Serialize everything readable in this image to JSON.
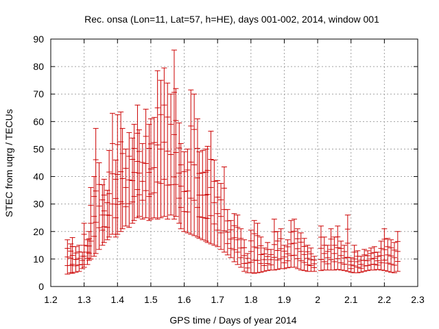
{
  "chart_data": {
    "type": "scatter",
    "style": "error-bars",
    "title": "Rec. onsa (Lon=11, Lat=57, h=HE), days 001-002, 2014, window 001",
    "xlabel": "GPS time / Days of year 2014",
    "ylabel": "STEC from uqrg / TECUs",
    "xlim": [
      1.2,
      2.3
    ],
    "ylim": [
      0,
      90
    ],
    "x_ticks": [
      "1.2",
      "1.3",
      "1.4",
      "1.5",
      "1.6",
      "1.7",
      "1.8",
      "1.9",
      "2",
      "2.1",
      "2.2",
      "2.3"
    ],
    "y_ticks": [
      "0",
      "10",
      "20",
      "30",
      "40",
      "50",
      "60",
      "70",
      "80",
      "90"
    ],
    "grid": true,
    "colors": {
      "series": "#cc0000",
      "grid": "#a0a0a0",
      "frame": "#000000"
    },
    "series": [
      {
        "points": [
          [
            1.25,
            4.5,
            17.0
          ],
          [
            1.26,
            5.0,
            15.5
          ],
          [
            1.265,
            4.8,
            17.8
          ],
          [
            1.275,
            5.2,
            14.5
          ],
          [
            1.285,
            5.5,
            15.0
          ],
          [
            1.295,
            6.5,
            12.5
          ],
          [
            1.3,
            7.0,
            23.0
          ],
          [
            1.31,
            8.0,
            17.0
          ],
          [
            1.315,
            9.5,
            20.0
          ],
          [
            1.32,
            10.0,
            36.0
          ],
          [
            1.33,
            11.0,
            40.0
          ],
          [
            1.335,
            12.0,
            57.5
          ],
          [
            1.345,
            13.5,
            45.0
          ],
          [
            1.355,
            15.0,
            37.0
          ],
          [
            1.36,
            16.0,
            39.0
          ],
          [
            1.37,
            17.0,
            35.0
          ],
          [
            1.375,
            18.0,
            49.5
          ],
          [
            1.385,
            19.0,
            63.0
          ],
          [
            1.395,
            18.0,
            46.0
          ],
          [
            1.4,
            19.0,
            62.5
          ],
          [
            1.41,
            20.0,
            63.5
          ],
          [
            1.415,
            21.0,
            57.5
          ],
          [
            1.425,
            22.0,
            50.0
          ],
          [
            1.435,
            21.5,
            56.0
          ],
          [
            1.445,
            23.0,
            54.0
          ],
          [
            1.45,
            24.0,
            59.0
          ],
          [
            1.46,
            25.0,
            66.0
          ],
          [
            1.465,
            25.5,
            57.0
          ],
          [
            1.475,
            24.5,
            52.0
          ],
          [
            1.485,
            25.0,
            64.5
          ],
          [
            1.495,
            24.0,
            59.0
          ],
          [
            1.5,
            24.5,
            61.0
          ],
          [
            1.51,
            25.0,
            61.5
          ],
          [
            1.52,
            24.5,
            78.5
          ],
          [
            1.53,
            25.0,
            75.0
          ],
          [
            1.54,
            25.5,
            79.5
          ],
          [
            1.55,
            24.5,
            74.0
          ],
          [
            1.56,
            26.0,
            70.0
          ],
          [
            1.57,
            24.5,
            86.0
          ],
          [
            1.575,
            25.5,
            72.0
          ],
          [
            1.585,
            23.0,
            59.5
          ],
          [
            1.59,
            21.0,
            52.0
          ],
          [
            1.6,
            20.0,
            49.0
          ],
          [
            1.61,
            19.5,
            50.0
          ],
          [
            1.62,
            19.0,
            71.5
          ],
          [
            1.63,
            18.5,
            70.0
          ],
          [
            1.64,
            18.0,
            61.0
          ],
          [
            1.645,
            17.5,
            49.0
          ],
          [
            1.655,
            17.0,
            49.5
          ],
          [
            1.665,
            16.5,
            50.0
          ],
          [
            1.67,
            16.0,
            51.0
          ],
          [
            1.68,
            15.5,
            56.5
          ],
          [
            1.69,
            15.0,
            46.0
          ],
          [
            1.7,
            14.5,
            38.5
          ],
          [
            1.71,
            13.5,
            37.5
          ],
          [
            1.72,
            12.5,
            43.5
          ],
          [
            1.73,
            11.5,
            28.0
          ],
          [
            1.74,
            10.5,
            24.0
          ],
          [
            1.75,
            9.0,
            26.5
          ],
          [
            1.76,
            8.0,
            26.0
          ],
          [
            1.77,
            7.0,
            21.0
          ],
          [
            1.78,
            5.5,
            17.0
          ],
          [
            1.79,
            5.0,
            12.0
          ],
          [
            1.8,
            5.0,
            20.5
          ],
          [
            1.81,
            4.8,
            24.0
          ],
          [
            1.82,
            5.0,
            23.0
          ],
          [
            1.83,
            5.2,
            18.0
          ],
          [
            1.84,
            5.5,
            14.0
          ],
          [
            1.85,
            5.8,
            16.0
          ],
          [
            1.86,
            6.0,
            13.5
          ],
          [
            1.87,
            6.0,
            24.5
          ],
          [
            1.88,
            6.2,
            20.0
          ],
          [
            1.89,
            6.5,
            21.0
          ],
          [
            1.9,
            6.5,
            15.0
          ],
          [
            1.91,
            6.8,
            17.0
          ],
          [
            1.92,
            7.0,
            24.0
          ],
          [
            1.93,
            7.0,
            24.5
          ],
          [
            1.94,
            6.5,
            21.0
          ],
          [
            1.95,
            6.0,
            19.5
          ],
          [
            1.96,
            5.8,
            17.5
          ],
          [
            1.97,
            5.5,
            15.0
          ],
          [
            1.98,
            5.5,
            14.0
          ],
          [
            1.99,
            5.5,
            11.0
          ],
          [
            2.01,
            5.8,
            22.0
          ],
          [
            2.02,
            6.0,
            18.0
          ],
          [
            2.03,
            6.0,
            15.0
          ],
          [
            2.04,
            6.0,
            21.0
          ],
          [
            2.05,
            6.0,
            18.0
          ],
          [
            2.06,
            6.2,
            22.0
          ],
          [
            2.07,
            6.0,
            16.5
          ],
          [
            2.08,
            5.8,
            15.0
          ],
          [
            2.09,
            5.5,
            26.0
          ],
          [
            2.1,
            5.2,
            10.5
          ],
          [
            2.11,
            5.0,
            15.0
          ],
          [
            2.12,
            5.0,
            13.0
          ],
          [
            2.13,
            5.2,
            11.0
          ],
          [
            2.14,
            5.5,
            13.5
          ],
          [
            2.15,
            5.8,
            13.0
          ],
          [
            2.16,
            6.0,
            14.0
          ],
          [
            2.17,
            6.0,
            14.5
          ],
          [
            2.18,
            6.2,
            12.5
          ],
          [
            2.19,
            6.0,
            16.5
          ],
          [
            2.2,
            5.8,
            21.0
          ],
          [
            2.21,
            5.5,
            17.5
          ],
          [
            2.22,
            5.2,
            17.0
          ],
          [
            2.23,
            5.0,
            16.0
          ],
          [
            2.24,
            5.5,
            20.0
          ]
        ]
      }
    ]
  }
}
